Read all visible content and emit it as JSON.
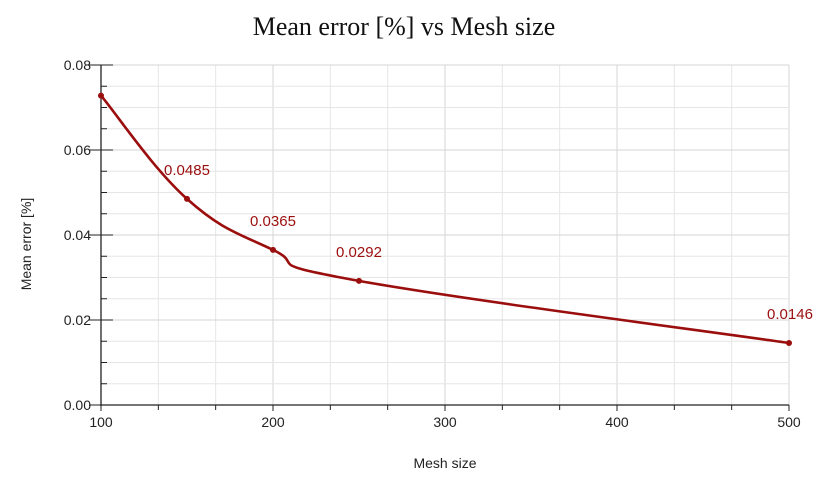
{
  "chart_data": {
    "type": "line",
    "title": "Mean error [%] vs Mesh size",
    "xlabel": "Mesh size",
    "ylabel": "Mean error [%]",
    "xlim": [
      100,
      500
    ],
    "ylim": [
      0,
      0.08
    ],
    "x_ticks": [
      100,
      200,
      300,
      400,
      500
    ],
    "x_tick_labels": [
      "100",
      "200",
      "300",
      "400",
      "500"
    ],
    "y_ticks": [
      0,
      0.02,
      0.04,
      0.06,
      0.08
    ],
    "y_tick_labels": [
      "0.00",
      "0.02",
      "0.04",
      "0.06",
      "0.08"
    ],
    "grid": true,
    "series": [
      {
        "color": "#9b0e0e",
        "x": [
          100,
          150,
          200,
          250,
          500
        ],
        "y": [
          0.0728,
          0.0485,
          0.0365,
          0.0292,
          0.0146
        ],
        "labels": [
          "",
          "0.0485",
          "0.0365",
          "0.0292",
          "0.0146"
        ]
      }
    ]
  }
}
